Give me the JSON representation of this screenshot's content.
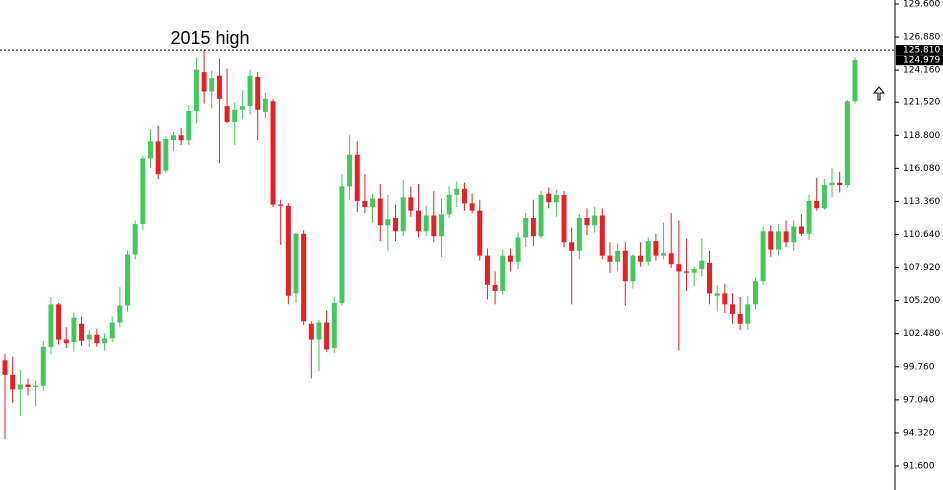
{
  "chart_data": {
    "type": "candlestick",
    "annotation": "2015 high",
    "ylim": [
      91.6,
      129.6
    ],
    "yticks": [
      {
        "value": 91.6,
        "label": "91.600"
      },
      {
        "value": 94.32,
        "label": "94.320"
      },
      {
        "value": 97.04,
        "label": "97.040"
      },
      {
        "value": 99.76,
        "label": "99.760"
      },
      {
        "value": 102.48,
        "label": "102.480"
      },
      {
        "value": 105.2,
        "label": "105.200"
      },
      {
        "value": 107.92,
        "label": "107.920"
      },
      {
        "value": 110.64,
        "label": "110.640"
      },
      {
        "value": 113.36,
        "label": "113.360"
      },
      {
        "value": 116.08,
        "label": "116.080"
      },
      {
        "value": 118.8,
        "label": "118.800"
      },
      {
        "value": 121.52,
        "label": "121.520"
      },
      {
        "value": 124.16,
        "label": "124.160"
      },
      {
        "value": 126.88,
        "label": "126.880"
      },
      {
        "value": 129.6,
        "label": "129.600"
      }
    ],
    "high_level": {
      "value": 125.81,
      "label": "125.810"
    },
    "current_price": {
      "value": 124.979,
      "label": "124.979"
    },
    "up_color": "#3fcb5b",
    "down_color": "#ee1c24",
    "open": [
      100.3,
      99.1,
      97.9,
      98.3,
      98.1,
      98.2,
      101.4,
      104.9,
      102.0,
      101.8,
      103.3,
      102.0,
      102.4,
      101.7,
      102.1,
      103.4,
      104.8,
      109.0,
      111.5,
      116.9,
      118.3,
      115.9,
      118.4,
      118.8,
      118.4,
      120.8,
      124.0,
      122.4,
      123.7,
      121.2,
      119.9,
      120.9,
      121.2,
      123.6,
      120.7,
      121.6,
      113.1,
      113.0,
      105.8,
      110.7,
      103.3,
      102.0,
      103.4,
      101.3,
      105.0,
      114.6,
      117.2,
      113.4,
      112.9,
      113.6,
      111.4,
      112.0,
      110.9,
      113.7,
      112.6,
      110.9,
      112.2,
      110.5,
      112.3,
      113.9,
      114.4,
      113.2,
      112.6,
      108.9,
      106.5,
      106.0,
      108.9,
      108.4,
      110.4,
      112.0,
      110.5,
      114.0,
      113.3,
      113.9,
      110.0,
      109.3,
      112.0,
      111.4,
      112.2,
      108.9,
      108.4,
      109.3,
      106.8,
      108.9,
      108.4,
      110.1,
      108.9,
      109.1,
      108.2,
      107.6,
      107.5,
      107.8,
      108.3,
      105.6,
      105.8,
      104.9,
      104.1,
      103.3,
      104.9,
      106.8,
      110.9,
      109.4,
      110.9,
      110.0,
      111.3,
      110.7,
      113.4,
      112.8,
      114.7,
      114.9,
      114.7,
      121.6
    ],
    "high": [
      100.8,
      100.6,
      99.5,
      98.8,
      98.6,
      101.9,
      105.5,
      105.0,
      103.0,
      104.2,
      103.9,
      102.8,
      102.9,
      102.5,
      103.9,
      106.3,
      109.3,
      111.8,
      117.1,
      119.3,
      119.6,
      118.7,
      119.1,
      119.4,
      121.3,
      125.2,
      125.9,
      124.1,
      125.1,
      124.3,
      121.5,
      122.5,
      124.2,
      124.0,
      122.3,
      121.8,
      113.5,
      113.2,
      110.8,
      111.0,
      103.5,
      103.6,
      104.4,
      105.5,
      115.6,
      118.8,
      118.3,
      115.6,
      114.0,
      114.8,
      113.9,
      113.1,
      115.1,
      114.6,
      114.8,
      113.0,
      114.2,
      113.6,
      114.6,
      115.0,
      114.9,
      114.0,
      113.5,
      109.5,
      107.6,
      109.4,
      109.5,
      110.8,
      112.4,
      113.5,
      114.2,
      114.5,
      114.3,
      114.2,
      111.2,
      112.3,
      112.8,
      112.9,
      112.8,
      110.0,
      109.9,
      110.0,
      109.0,
      110.0,
      110.4,
      110.7,
      111.6,
      112.4,
      111.8,
      110.3,
      108.0,
      110.3,
      109.3,
      106.5,
      106.6,
      105.8,
      105.5,
      105.6,
      107.1,
      111.3,
      111.4,
      111.5,
      111.8,
      111.8,
      112.3,
      113.9,
      115.3,
      115.2,
      116.1,
      115.8,
      121.7,
      125.2
    ],
    "low": [
      93.8,
      96.8,
      95.7,
      97.4,
      96.5,
      97.8,
      100.8,
      101.6,
      101.3,
      101.0,
      101.5,
      101.4,
      101.4,
      101.1,
      101.8,
      103.0,
      104.3,
      108.6,
      111.0,
      116.1,
      115.2,
      115.7,
      117.5,
      118.0,
      118.0,
      119.8,
      121.4,
      121.0,
      116.5,
      119.8,
      118.0,
      120.1,
      120.5,
      118.4,
      120.2,
      112.9,
      109.8,
      104.9,
      105.0,
      103.2,
      98.8,
      99.4,
      101.0,
      100.9,
      104.8,
      113.5,
      112.5,
      112.4,
      111.6,
      110.1,
      109.3,
      110.1,
      110.5,
      112.1,
      110.4,
      110.5,
      110.0,
      108.8,
      112.0,
      112.9,
      112.6,
      112.4,
      108.5,
      105.3,
      104.9,
      105.7,
      107.6,
      107.8,
      109.6,
      109.7,
      110.3,
      112.8,
      112.1,
      109.6,
      104.9,
      108.6,
      110.6,
      110.8,
      108.6,
      107.5,
      107.6,
      104.8,
      106.2,
      108.0,
      108.1,
      108.5,
      108.6,
      107.9,
      101.1,
      106.0,
      106.4,
      107.2,
      104.9,
      104.3,
      104.2,
      103.3,
      102.8,
      102.8,
      104.5,
      106.5,
      108.8,
      108.9,
      109.6,
      109.3,
      110.5,
      110.2,
      112.6,
      112.7,
      113.7,
      114.1,
      114.5,
      121.4
    ],
    "close": [
      99.1,
      97.9,
      98.3,
      98.1,
      98.2,
      101.4,
      104.9,
      102.0,
      101.7,
      103.8,
      101.9,
      102.4,
      101.7,
      102.1,
      103.4,
      104.8,
      109.0,
      111.5,
      116.9,
      118.3,
      115.6,
      118.5,
      118.8,
      118.4,
      120.8,
      124.2,
      122.4,
      123.5,
      121.8,
      119.9,
      120.9,
      121.2,
      123.7,
      120.9,
      121.8,
      113.1,
      113.0,
      105.6,
      110.7,
      103.5,
      102.0,
      103.4,
      101.2,
      105.0,
      114.6,
      117.2,
      113.4,
      112.9,
      113.6,
      111.4,
      111.9,
      110.9,
      113.7,
      112.6,
      110.9,
      112.2,
      110.5,
      112.3,
      113.9,
      114.4,
      113.2,
      112.6,
      108.9,
      106.5,
      106.0,
      108.9,
      108.4,
      110.4,
      112.0,
      110.5,
      113.9,
      113.3,
      113.9,
      110.0,
      109.3,
      112.0,
      111.4,
      112.2,
      108.9,
      108.4,
      109.3,
      106.8,
      108.9,
      108.4,
      110.1,
      108.9,
      109.1,
      108.2,
      107.6,
      107.5,
      107.8,
      108.5,
      105.8,
      105.8,
      104.9,
      104.1,
      103.3,
      104.9,
      106.8,
      110.9,
      109.4,
      110.9,
      110.0,
      111.3,
      110.7,
      113.4,
      112.8,
      114.7,
      114.9,
      114.7,
      121.6,
      124.979
    ]
  }
}
